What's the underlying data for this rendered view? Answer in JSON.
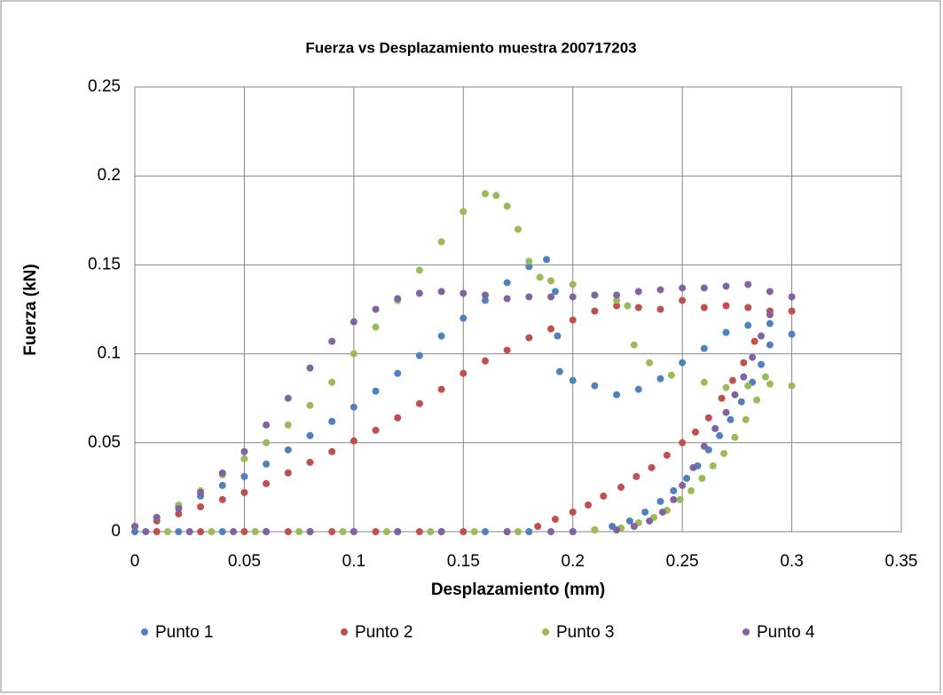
{
  "chart_data": {
    "type": "scatter",
    "title": "Fuerza vs Desplazamiento muestra 200717203",
    "xlabel": "Desplazamiento (mm)",
    "ylabel": "Fuerza (kN)",
    "xlim": [
      0,
      0.35
    ],
    "xticks": [
      0,
      0.05,
      0.1,
      0.15,
      0.2,
      0.25,
      0.3,
      0.35
    ],
    "ylim": [
      0,
      0.25
    ],
    "yticks": [
      0,
      0.05,
      0.1,
      0.15,
      0.2,
      0.25
    ],
    "grid": true,
    "legend": "bottom",
    "series": [
      {
        "name": "Punto 1",
        "color": "#4f81bd",
        "x": [
          0,
          0.01,
          0.02,
          0.03,
          0.04,
          0.05,
          0.06,
          0.07,
          0.08,
          0.09,
          0.1,
          0.11,
          0.12,
          0.13,
          0.14,
          0.15,
          0.16,
          0.17,
          0.18,
          0.188,
          0.192,
          0.193,
          0.194,
          0.2,
          0.21,
          0.22,
          0.23,
          0.24,
          0.25,
          0.26,
          0.27,
          0.28,
          0.29,
          0.3,
          0.29,
          0.286,
          0.282,
          0.277,
          0.272,
          0.267,
          0.262,
          0.257,
          0.252,
          0.246,
          0.24,
          0.233,
          0.226,
          0.218,
          0.21,
          0.2,
          0.18,
          0.16,
          0.14,
          0.12,
          0.1,
          0.08,
          0.06,
          0.04,
          0.02,
          0
        ],
        "values": [
          0.003,
          0.008,
          0.014,
          0.02,
          0.026,
          0.031,
          0.038,
          0.046,
          0.054,
          0.062,
          0.07,
          0.079,
          0.089,
          0.099,
          0.11,
          0.12,
          0.13,
          0.14,
          0.149,
          0.153,
          0.135,
          0.11,
          0.09,
          0.085,
          0.082,
          0.077,
          0.08,
          0.086,
          0.095,
          0.103,
          0.112,
          0.116,
          0.117,
          0.111,
          0.105,
          0.094,
          0.084,
          0.073,
          0.063,
          0.054,
          0.046,
          0.037,
          0.03,
          0.023,
          0.017,
          0.011,
          0.006,
          0.003,
          0.001,
          0,
          0,
          0,
          0,
          0,
          0,
          0,
          0,
          0,
          0,
          0
        ]
      },
      {
        "name": "Punto 2",
        "color": "#c0504d",
        "x": [
          0,
          0.01,
          0.02,
          0.03,
          0.04,
          0.05,
          0.06,
          0.07,
          0.08,
          0.09,
          0.1,
          0.11,
          0.12,
          0.13,
          0.14,
          0.15,
          0.16,
          0.17,
          0.18,
          0.19,
          0.2,
          0.21,
          0.22,
          0.23,
          0.24,
          0.25,
          0.26,
          0.27,
          0.28,
          0.29,
          0.3,
          0.283,
          0.278,
          0.273,
          0.268,
          0.262,
          0.256,
          0.25,
          0.243,
          0.236,
          0.229,
          0.222,
          0.214,
          0.207,
          0.2,
          0.192,
          0.184,
          0.17,
          0.15,
          0.13,
          0.11,
          0.09,
          0.07,
          0.05,
          0.03,
          0.01
        ],
        "values": [
          0.003,
          0.006,
          0.01,
          0.014,
          0.018,
          0.022,
          0.027,
          0.033,
          0.039,
          0.045,
          0.051,
          0.057,
          0.064,
          0.072,
          0.08,
          0.089,
          0.096,
          0.102,
          0.109,
          0.114,
          0.119,
          0.124,
          0.127,
          0.126,
          0.125,
          0.13,
          0.126,
          0.127,
          0.126,
          0.124,
          0.124,
          0.107,
          0.095,
          0.085,
          0.075,
          0.064,
          0.056,
          0.05,
          0.043,
          0.036,
          0.031,
          0.025,
          0.02,
          0.015,
          0.011,
          0.007,
          0.003,
          0,
          0,
          0,
          0,
          0,
          0,
          0,
          0,
          0
        ]
      },
      {
        "name": "Punto 3",
        "color": "#9bbb59",
        "x": [
          0,
          0.01,
          0.02,
          0.03,
          0.04,
          0.05,
          0.06,
          0.07,
          0.08,
          0.09,
          0.1,
          0.11,
          0.12,
          0.13,
          0.14,
          0.15,
          0.16,
          0.165,
          0.17,
          0.175,
          0.18,
          0.185,
          0.19,
          0.2,
          0.21,
          0.22,
          0.225,
          0.228,
          0.235,
          0.245,
          0.26,
          0.27,
          0.28,
          0.29,
          0.3,
          0.288,
          0.284,
          0.279,
          0.274,
          0.269,
          0.264,
          0.259,
          0.254,
          0.249,
          0.243,
          0.237,
          0.23,
          0.222,
          0.21,
          0.2,
          0.175,
          0.155,
          0.135,
          0.115,
          0.095,
          0.075,
          0.055,
          0.035,
          0.015
        ],
        "values": [
          0.003,
          0.008,
          0.015,
          0.023,
          0.032,
          0.041,
          0.05,
          0.06,
          0.071,
          0.084,
          0.1,
          0.115,
          0.13,
          0.147,
          0.163,
          0.18,
          0.19,
          0.189,
          0.183,
          0.17,
          0.152,
          0.143,
          0.141,
          0.139,
          0.133,
          0.13,
          0.127,
          0.105,
          0.095,
          0.088,
          0.084,
          0.081,
          0.082,
          0.083,
          0.082,
          0.087,
          0.074,
          0.063,
          0.053,
          0.044,
          0.037,
          0.03,
          0.023,
          0.018,
          0.012,
          0.008,
          0.005,
          0.002,
          0.001,
          0,
          0,
          0,
          0,
          0,
          0,
          0,
          0,
          0,
          0
        ]
      },
      {
        "name": "Punto 4",
        "color": "#8064a2",
        "x": [
          0,
          0.01,
          0.02,
          0.03,
          0.04,
          0.05,
          0.06,
          0.07,
          0.08,
          0.09,
          0.1,
          0.11,
          0.12,
          0.13,
          0.14,
          0.15,
          0.16,
          0.17,
          0.18,
          0.19,
          0.2,
          0.21,
          0.22,
          0.23,
          0.24,
          0.25,
          0.26,
          0.27,
          0.28,
          0.29,
          0.3,
          0.29,
          0.286,
          0.282,
          0.278,
          0.274,
          0.27,
          0.265,
          0.26,
          0.255,
          0.25,
          0.246,
          0.241,
          0.235,
          0.228,
          0.22,
          0.2,
          0.19,
          0.17,
          0.14,
          0.12,
          0.1,
          0.08,
          0.06,
          0.045,
          0.025,
          0.005
        ],
        "values": [
          0.003,
          0.008,
          0.013,
          0.022,
          0.033,
          0.045,
          0.06,
          0.075,
          0.092,
          0.107,
          0.118,
          0.125,
          0.131,
          0.134,
          0.135,
          0.134,
          0.133,
          0.131,
          0.132,
          0.132,
          0.132,
          0.133,
          0.133,
          0.135,
          0.136,
          0.137,
          0.137,
          0.138,
          0.139,
          0.135,
          0.132,
          0.122,
          0.11,
          0.098,
          0.087,
          0.077,
          0.067,
          0.058,
          0.048,
          0.036,
          0.026,
          0.018,
          0.011,
          0.006,
          0.003,
          0.001,
          0,
          0,
          0,
          0,
          0,
          0,
          0,
          0,
          0,
          0,
          0
        ]
      }
    ]
  }
}
